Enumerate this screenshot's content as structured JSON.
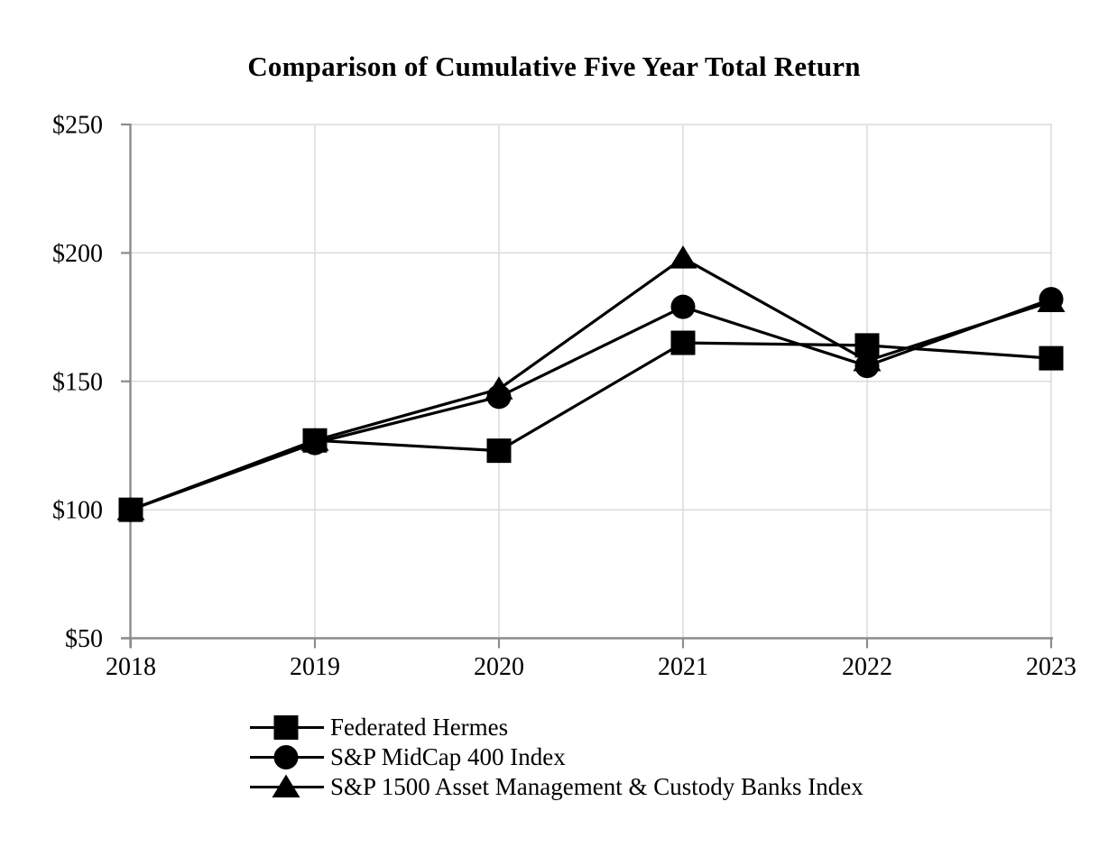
{
  "chart_data": {
    "type": "line",
    "title": "Comparison of Cumulative Five Year Total Return",
    "categories": [
      "2018",
      "2019",
      "2020",
      "2021",
      "2022",
      "2023"
    ],
    "series": [
      {
        "name": "Federated Hermes",
        "marker": "square",
        "values": [
          100,
          127,
          123,
          165,
          164,
          159
        ]
      },
      {
        "name": "S&P MidCap 400 Index",
        "marker": "circle",
        "values": [
          100,
          126,
          144,
          179,
          156,
          182
        ]
      },
      {
        "name": "S&P 1500 Asset Management & Custody Banks Index",
        "marker": "triangle",
        "values": [
          100,
          127,
          147,
          198,
          158,
          181
        ]
      }
    ],
    "y_axis": {
      "min": 50,
      "max": 250,
      "step": 50,
      "prefix": "$",
      "tick_labels": [
        "$250",
        "$200",
        "$150",
        "$100",
        "$50"
      ]
    },
    "grid": true,
    "legend_position": "bottom-left",
    "colors": {
      "series": "#000000",
      "gridline": "#dcdcdc",
      "axis": "#8c8c8c",
      "text": "#000000"
    }
  }
}
